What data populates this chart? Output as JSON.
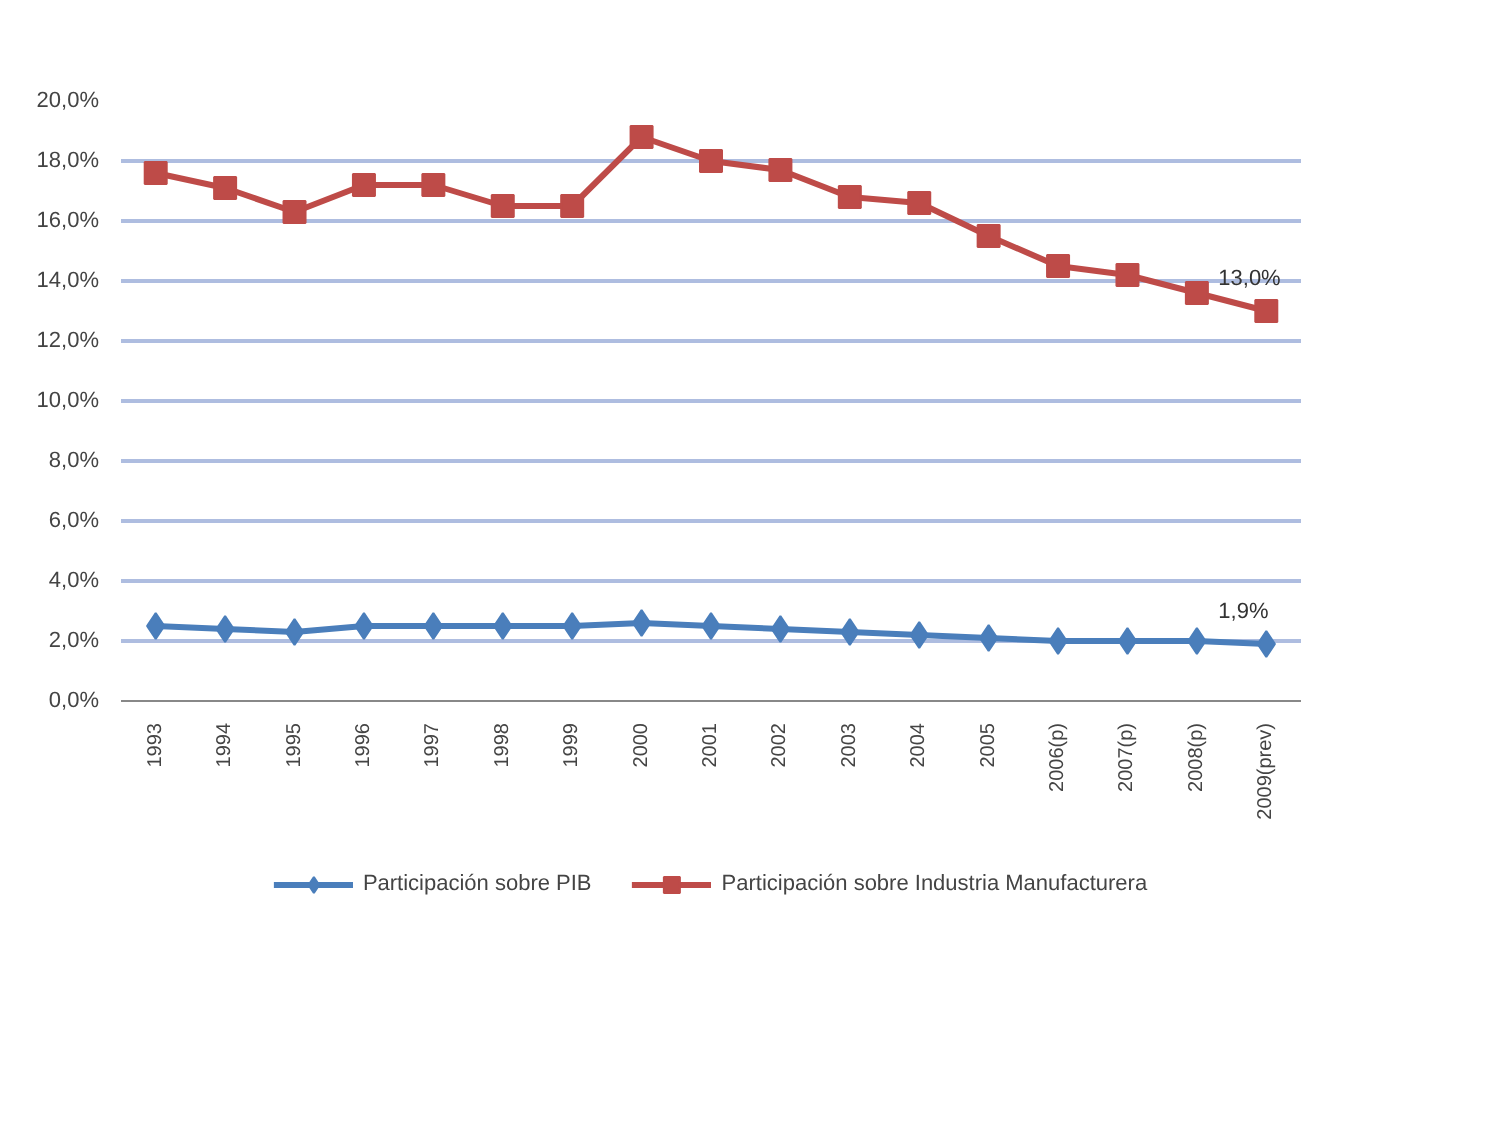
{
  "chart_data": {
    "type": "line",
    "categories": [
      "1993",
      "1994",
      "1995",
      "1996",
      "1997",
      "1998",
      "1999",
      "2000",
      "2001",
      "2002",
      "2003",
      "2004",
      "2005",
      "2006(p)",
      "2007(p)",
      "2008(p)",
      "2009(prev)"
    ],
    "series": [
      {
        "name": "Participación sobre PIB",
        "color": "#4a7ebb",
        "marker": "diamond",
        "values": [
          2.5,
          2.4,
          2.3,
          2.5,
          2.5,
          2.5,
          2.5,
          2.6,
          2.5,
          2.4,
          2.3,
          2.2,
          2.1,
          2.0,
          2.0,
          2.0,
          1.9
        ]
      },
      {
        "name": "Participación sobre Industria Manufacturera",
        "color": "#be4b48",
        "marker": "square",
        "values": [
          17.6,
          17.1,
          16.3,
          17.2,
          17.2,
          16.5,
          16.5,
          18.8,
          18.0,
          17.7,
          16.8,
          16.6,
          15.5,
          14.5,
          14.2,
          13.6,
          13.0
        ]
      }
    ],
    "ylim": [
      0,
      20
    ],
    "yticks": [
      {
        "value": 0,
        "label": "0,0%"
      },
      {
        "value": 2,
        "label": "2,0%"
      },
      {
        "value": 4,
        "label": "4,0%"
      },
      {
        "value": 6,
        "label": "6,0%"
      },
      {
        "value": 8,
        "label": "8,0%"
      },
      {
        "value": 10,
        "label": "10,0%"
      },
      {
        "value": 12,
        "label": "12,0%"
      },
      {
        "value": 14,
        "label": "14,0%"
      },
      {
        "value": 16,
        "label": "16,0%"
      },
      {
        "value": 18,
        "label": "18,0%"
      },
      {
        "value": 20,
        "label": "20,0%"
      }
    ],
    "annotations": [
      {
        "text": "13,0%",
        "x": "2009(prev)",
        "y": 13.0
      },
      {
        "text": "1,9%",
        "x": "2009(prev)",
        "y": 1.9
      }
    ],
    "grid": "y",
    "legend": "bottom"
  }
}
